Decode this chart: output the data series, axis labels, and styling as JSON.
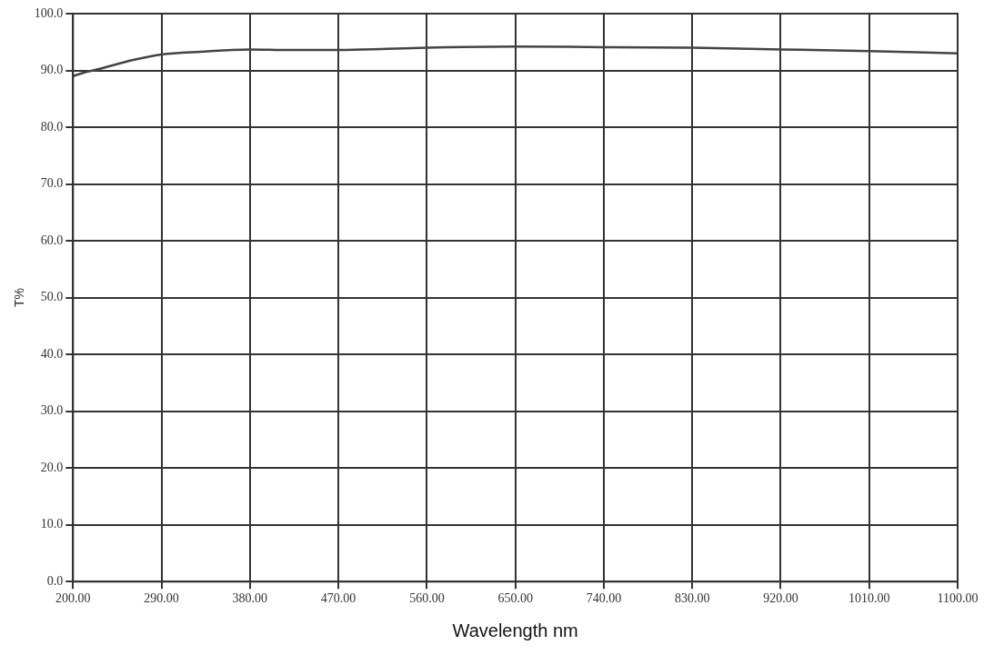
{
  "chart_data": {
    "type": "line",
    "xlabel": "Wavelength nm",
    "ylabel": "T%",
    "x": [
      200,
      215,
      230,
      260,
      290,
      330,
      380,
      420,
      470,
      520,
      560,
      650,
      740,
      830,
      920,
      1010,
      1100
    ],
    "series": [
      {
        "color": "#444444",
        "values": [
          89.0,
          89.8,
          90.4,
          91.8,
          92.8,
          93.3,
          93.7,
          93.6,
          93.6,
          93.8,
          94.0,
          94.2,
          94.1,
          94.0,
          93.7,
          93.4,
          93.0
        ]
      }
    ],
    "xlim": [
      200,
      1100
    ],
    "ylim": [
      0,
      100
    ],
    "xticks": [
      {
        "value": 200,
        "label": "200.00"
      },
      {
        "value": 290,
        "label": "290.00"
      },
      {
        "value": 380,
        "label": "380.00"
      },
      {
        "value": 470,
        "label": "470.00"
      },
      {
        "value": 560,
        "label": "560.00"
      },
      {
        "value": 650,
        "label": "650.00"
      },
      {
        "value": 740,
        "label": "740.00"
      },
      {
        "value": 830,
        "label": "830.00"
      },
      {
        "value": 920,
        "label": "920.00"
      },
      {
        "value": 1010,
        "label": "1010.00"
      },
      {
        "value": 1100,
        "label": "1100.00"
      }
    ],
    "yticks": [
      {
        "value": 0,
        "label": "0.0"
      },
      {
        "value": 10,
        "label": "10.0"
      },
      {
        "value": 20,
        "label": "20.0"
      },
      {
        "value": 30,
        "label": "30.0"
      },
      {
        "value": 40,
        "label": "40.0"
      },
      {
        "value": 50,
        "label": "50.0"
      },
      {
        "value": 60,
        "label": "60.0"
      },
      {
        "value": 70,
        "label": "70.0"
      },
      {
        "value": 80,
        "label": "80.0"
      },
      {
        "value": 90,
        "label": "90.0"
      },
      {
        "value": 100,
        "label": "100.0"
      }
    ],
    "grid": true,
    "legend": false,
    "marker": "none",
    "line_style": "solid"
  }
}
